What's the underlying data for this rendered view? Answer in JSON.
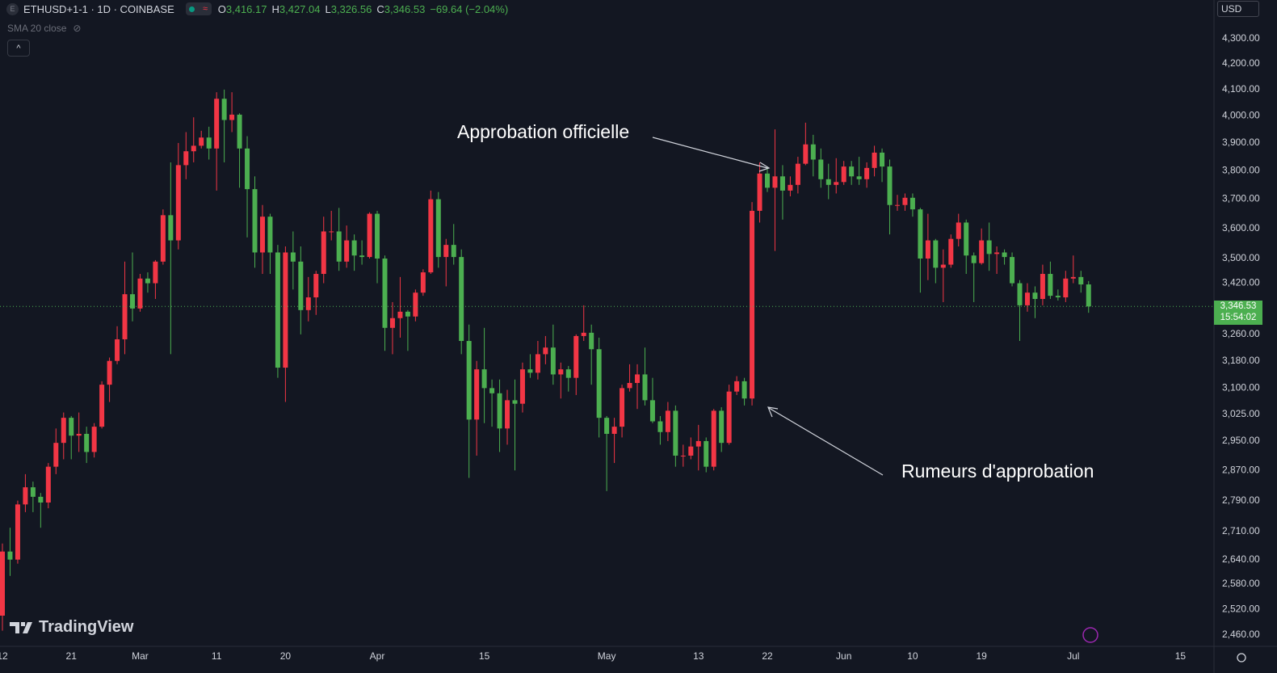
{
  "chart_data": {
    "type": "candlestick",
    "header": {
      "symbol": "ETHUSD+1-1 · 1D · COINBASE",
      "legend": [
        {
          "key": "O",
          "value": "3,416.17"
        },
        {
          "key": "H",
          "value": "3,427.04"
        },
        {
          "key": "L",
          "value": "3,326.56"
        },
        {
          "key": "C",
          "value": "3,346.53"
        }
      ],
      "change": "−69.64 (−2.04%)",
      "indicator": "SMA 20 close",
      "currency": "USD",
      "brand": "TradingView"
    },
    "annotations": [
      "Approbation officielle",
      "Rumeurs d'approbation"
    ],
    "last_label": "3,346.53",
    "countdown": "15:54:02",
    "log": true,
    "grid": false,
    "colors": {
      "up": "#f23645",
      "down": "#4caf50"
    },
    "ylim": [
      2434,
      4459
    ],
    "yticks": [
      {
        "value": 2460,
        "label": "2,460.00"
      },
      {
        "value": 2520,
        "label": "2,520.00"
      },
      {
        "value": 2580,
        "label": "2,580.00"
      },
      {
        "value": 2640,
        "label": "2,640.00"
      },
      {
        "value": 2710,
        "label": "2,710.00"
      },
      {
        "value": 2790,
        "label": "2,790.00"
      },
      {
        "value": 2870,
        "label": "2,870.00"
      },
      {
        "value": 2950,
        "label": "2,950.00"
      },
      {
        "value": 3025,
        "label": "3,025.00"
      },
      {
        "value": 3100,
        "label": "3,100.00"
      },
      {
        "value": 3180,
        "label": "3,180.00"
      },
      {
        "value": 3260,
        "label": "3,260.00"
      },
      {
        "value": 3420,
        "label": "3,420.00"
      },
      {
        "value": 3500,
        "label": "3,500.00"
      },
      {
        "value": 3600,
        "label": "3,600.00"
      },
      {
        "value": 3700,
        "label": "3,700.00"
      },
      {
        "value": 3800,
        "label": "3,800.00"
      },
      {
        "value": 3900,
        "label": "3,900.00"
      },
      {
        "value": 4000,
        "label": "4,000.00"
      },
      {
        "value": 4100,
        "label": "4,100.00"
      },
      {
        "value": 4200,
        "label": "4,200.00"
      },
      {
        "value": 4300,
        "label": "4,300.00"
      }
    ],
    "categories": [
      "12",
      null,
      null,
      null,
      null,
      null,
      null,
      null,
      null,
      "21",
      null,
      null,
      null,
      null,
      null,
      null,
      null,
      null,
      "Mar",
      null,
      null,
      null,
      null,
      null,
      null,
      null,
      null,
      null,
      "11",
      null,
      null,
      null,
      null,
      null,
      null,
      null,
      null,
      "20",
      null,
      null,
      null,
      null,
      null,
      null,
      null,
      null,
      null,
      null,
      null,
      "Apr",
      null,
      null,
      null,
      null,
      null,
      null,
      null,
      null,
      null,
      null,
      null,
      null,
      null,
      "15",
      null,
      null,
      null,
      null,
      null,
      null,
      null,
      null,
      null,
      null,
      null,
      null,
      null,
      null,
      null,
      "May",
      null,
      null,
      null,
      null,
      null,
      null,
      null,
      null,
      null,
      null,
      null,
      "13",
      null,
      null,
      null,
      null,
      null,
      null,
      null,
      null,
      "22",
      null,
      null,
      null,
      null,
      null,
      null,
      null,
      null,
      null,
      "Jun",
      null,
      null,
      null,
      null,
      null,
      null,
      null,
      null,
      "10",
      null,
      null,
      null,
      null,
      null,
      null,
      null,
      null,
      "19",
      null,
      null,
      null,
      null,
      null,
      null,
      null,
      null,
      null,
      null,
      null,
      "Jul",
      null,
      null,
      null,
      null,
      null,
      null,
      null,
      null,
      null,
      null,
      null,
      null,
      null,
      "15",
      null,
      null,
      null,
      null
    ],
    "open": [
      2505,
      2660,
      2640,
      2780,
      2825,
      2800,
      2785,
      2880,
      2945,
      3015,
      2965,
      2970,
      2920,
      2990,
      3110,
      3180,
      3245,
      3385,
      3340,
      3435,
      3420,
      3490,
      3645,
      3560,
      3820,
      3870,
      3890,
      3920,
      3880,
      4065,
      3985,
      4005,
      3880,
      3735,
      3520,
      3640,
      3520,
      3160,
      3520,
      3490,
      3335,
      3375,
      3450,
      3590,
      3590,
      3490,
      3560,
      3510,
      3505,
      3650,
      3500,
      3280,
      3310,
      3330,
      3315,
      3390,
      3455,
      3700,
      3505,
      3545,
      3505,
      3240,
      3010,
      3155,
      3100,
      3085,
      2985,
      3065,
      3055,
      3155,
      3145,
      3200,
      3220,
      3140,
      3155,
      3130,
      3255,
      3265,
      3215,
      3015,
      2970,
      2990,
      3100,
      3115,
      3140,
      3065,
      3005,
      2975,
      3035,
      2910,
      2910,
      2935,
      2950,
      2880,
      3035,
      2945,
      3090,
      3120,
      3070,
      3660,
      3790,
      3740,
      3780,
      3730,
      3750,
      3825,
      3895,
      3840,
      3770,
      3750,
      3760,
      3815,
      3780,
      3770,
      3810,
      3865,
      3815,
      3680,
      3680,
      3705,
      3665,
      3500,
      3560,
      3470,
      3480,
      3565,
      3620,
      3510,
      3485,
      3560,
      3515,
      3520,
      3505,
      3420,
      3350,
      3390,
      3370,
      3450,
      3380,
      3375,
      3435,
      3440,
      3416.17,
      null,
      null,
      null,
      null,
      null,
      null,
      null,
      null,
      null,
      null,
      null,
      null,
      null,
      null,
      null,
      null
    ],
    "high": [
      2680,
      2720,
      2790,
      2860,
      2840,
      2810,
      2890,
      2985,
      3030,
      3020,
      3030,
      2990,
      3000,
      3120,
      3190,
      3285,
      3490,
      3520,
      3450,
      3455,
      3495,
      3665,
      3830,
      3900,
      3940,
      3995,
      3945,
      3960,
      4090,
      4100,
      4090,
      4010,
      3925,
      3780,
      3680,
      3650,
      3545,
      3540,
      3590,
      3540,
      3440,
      3460,
      3640,
      3660,
      3670,
      3610,
      3580,
      3560,
      3655,
      3660,
      3510,
      3360,
      3440,
      3335,
      3400,
      3465,
      3730,
      3725,
      3565,
      3615,
      3530,
      3290,
      3180,
      3280,
      3125,
      3125,
      3095,
      3125,
      3175,
      3200,
      3240,
      3255,
      3290,
      3175,
      3165,
      3260,
      3350,
      3290,
      3250,
      3020,
      3015,
      3110,
      3170,
      3170,
      3220,
      3130,
      3020,
      3060,
      3050,
      2940,
      2960,
      2995,
      2960,
      3040,
      3045,
      3110,
      3135,
      3130,
      3690,
      3830,
      3815,
      3950,
      3820,
      3780,
      3850,
      3975,
      3930,
      3880,
      3825,
      3845,
      3835,
      3835,
      3850,
      3830,
      3890,
      3880,
      3840,
      3715,
      3720,
      3720,
      3670,
      3650,
      3565,
      3530,
      3580,
      3650,
      3630,
      3520,
      3600,
      3620,
      3540,
      3530,
      3520,
      3430,
      3420,
      3410,
      3480,
      3490,
      3400,
      3460,
      3510,
      3460,
      3427.04,
      null,
      null,
      null,
      null,
      null,
      null,
      null,
      null,
      null,
      null,
      null,
      null,
      null,
      null,
      null,
      null
    ],
    "low": [
      2470,
      2600,
      2630,
      2760,
      2760,
      2720,
      2770,
      2860,
      2900,
      2900,
      2920,
      2890,
      2905,
      2985,
      3060,
      3170,
      3200,
      3300,
      3330,
      3390,
      3370,
      3480,
      3200,
      3530,
      3770,
      3830,
      3880,
      3840,
      3730,
      3830,
      3940,
      3740,
      3570,
      3470,
      3450,
      3450,
      3130,
      3060,
      3400,
      3260,
      3300,
      3320,
      3420,
      3560,
      3460,
      3470,
      3460,
      3480,
      3500,
      3420,
      3210,
      3200,
      3250,
      3210,
      3300,
      3380,
      3450,
      3470,
      3410,
      3480,
      3200,
      2850,
      2910,
      3000,
      2990,
      2920,
      2940,
      2870,
      3030,
      3130,
      3125,
      3170,
      3110,
      3070,
      3090,
      3080,
      3240,
      3110,
      2960,
      2815,
      2890,
      2960,
      3090,
      3040,
      3050,
      3000,
      2940,
      2950,
      2880,
      2880,
      2900,
      2870,
      2865,
      2870,
      2920,
      2940,
      3080,
      3050,
      3050,
      3620,
      3725,
      3525,
      3630,
      3710,
      3720,
      3820,
      3780,
      3740,
      3700,
      3720,
      3750,
      3750,
      3750,
      3740,
      3780,
      3760,
      3580,
      3660,
      3660,
      3640,
      3390,
      3430,
      3420,
      3360,
      3470,
      3540,
      3450,
      3360,
      3480,
      3460,
      3450,
      3480,
      3410,
      3240,
      3330,
      3310,
      3350,
      3370,
      3365,
      3360,
      3420,
      3390,
      3326.56,
      null,
      null,
      null,
      null,
      null,
      null,
      null,
      null,
      null,
      null,
      null,
      null,
      null,
      null,
      null,
      null
    ],
    "close": [
      2660,
      2640,
      2780,
      2825,
      2800,
      2785,
      2880,
      2945,
      3015,
      2965,
      2970,
      2920,
      2990,
      3110,
      3180,
      3245,
      3385,
      3340,
      3435,
      3420,
      3490,
      3645,
      3560,
      3820,
      3870,
      3890,
      3920,
      3880,
      4065,
      3985,
      4005,
      3880,
      3735,
      3520,
      3640,
      3520,
      3160,
      3520,
      3490,
      3335,
      3375,
      3450,
      3590,
      3590,
      3490,
      3560,
      3510,
      3505,
      3650,
      3500,
      3280,
      3310,
      3330,
      3315,
      3390,
      3455,
      3700,
      3505,
      3545,
      3505,
      3240,
      3010,
      3155,
      3100,
      3085,
      2985,
      3065,
      3055,
      3155,
      3145,
      3200,
      3220,
      3140,
      3155,
      3130,
      3255,
      3265,
      3215,
      3015,
      2970,
      2990,
      3100,
      3115,
      3140,
      3065,
      3005,
      2975,
      3035,
      2910,
      2910,
      2935,
      2950,
      2880,
      3035,
      2945,
      3090,
      3120,
      3070,
      3660,
      3790,
      3740,
      3780,
      3730,
      3750,
      3825,
      3895,
      3840,
      3770,
      3750,
      3760,
      3815,
      3780,
      3770,
      3810,
      3865,
      3815,
      3680,
      3680,
      3705,
      3665,
      3500,
      3560,
      3470,
      3480,
      3565,
      3620,
      3510,
      3485,
      3560,
      3515,
      3520,
      3505,
      3420,
      3350,
      3390,
      3370,
      3450,
      3380,
      3375,
      3435,
      3440,
      3416.17,
      3346.53,
      null,
      null,
      null,
      null,
      null,
      null,
      null,
      null,
      null,
      null,
      null,
      null,
      null,
      null,
      null,
      null
    ]
  }
}
